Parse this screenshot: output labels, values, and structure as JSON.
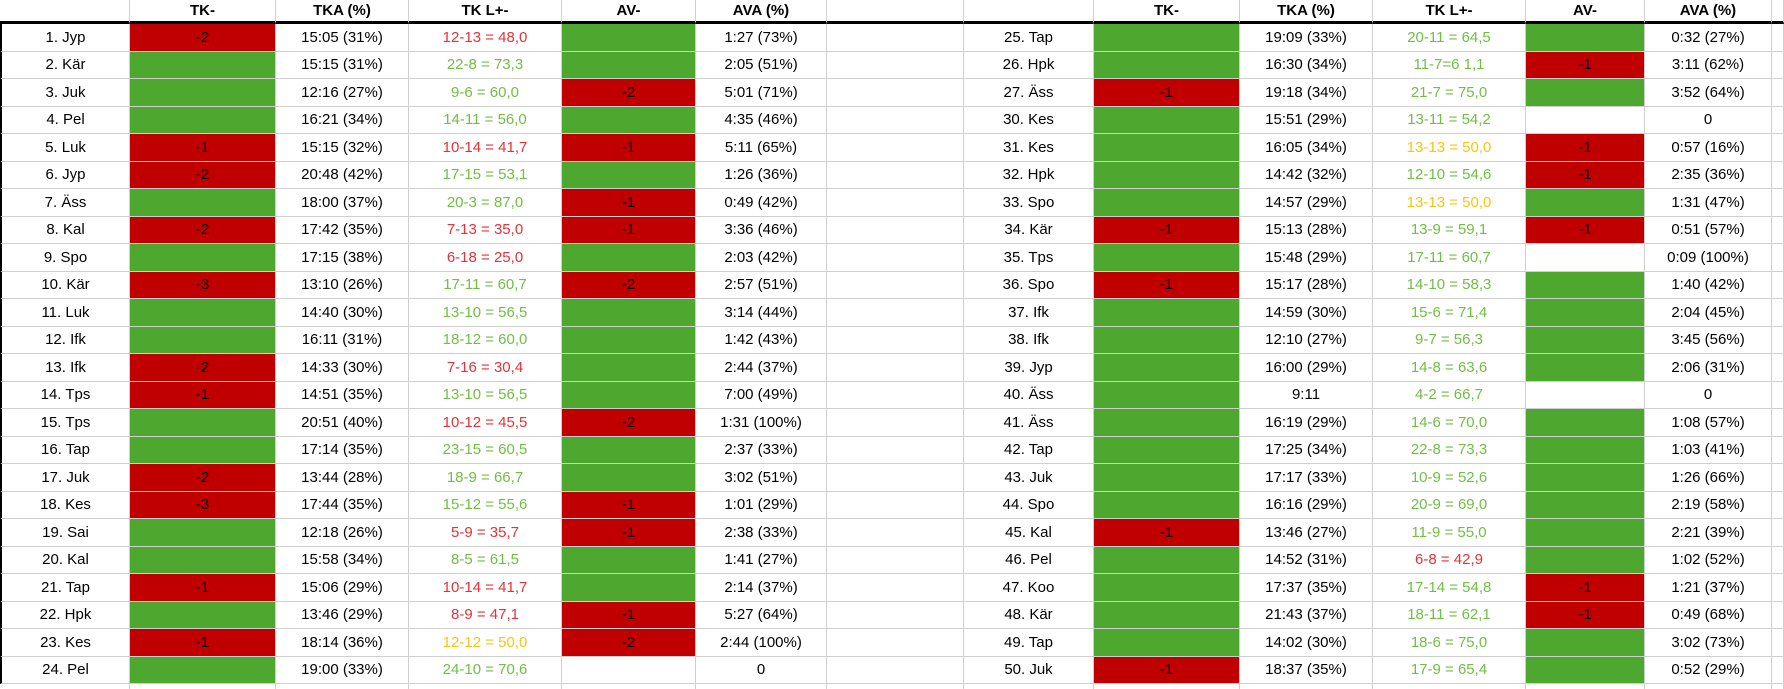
{
  "columns": [
    "",
    "TK-",
    "TKA (%)",
    "TK L+-",
    "AV-",
    "AVA (%)"
  ],
  "colors": {
    "fill_green": "#4ea72e",
    "fill_red": "#c00000",
    "text_green": "#70bf44",
    "text_red": "#e53238",
    "text_yellow": "#fcc40f",
    "text_black": "#000000",
    "gridline": "#cfcfcf",
    "header_rule": "#000000"
  },
  "left_rows": [
    {
      "label": "1. Jyp",
      "tk": {
        "fill": "red",
        "text": "-2"
      },
      "tka": "15:05 (31%)",
      "tkl": "12-13 = 48,0",
      "tklc": "red",
      "av": {
        "fill": "green"
      },
      "ava": "1:27 (73%)"
    },
    {
      "label": "2. Kär",
      "tk": {
        "fill": "green"
      },
      "tka": "15:15 (31%)",
      "tkl": "22-8 = 73,3",
      "tklc": "green",
      "av": {
        "fill": "green"
      },
      "ava": "2:05 (51%)"
    },
    {
      "label": "3. Juk",
      "tk": {
        "fill": "green"
      },
      "tka": "12:16 (27%)",
      "tkl": "9-6 = 60,0",
      "tklc": "green",
      "av": {
        "fill": "red",
        "text": "-2"
      },
      "ava": "5:01 (71%)"
    },
    {
      "label": "4. Pel",
      "tk": {
        "fill": "green"
      },
      "tka": "16:21 (34%)",
      "tkl": "14-11 = 56,0",
      "tklc": "green",
      "av": {
        "fill": "green"
      },
      "ava": "4:35 (46%)"
    },
    {
      "label": "5. Luk",
      "tk": {
        "fill": "red",
        "text": "-1"
      },
      "tka": "15:15 (32%)",
      "tkl": "10-14 = 41,7",
      "tklc": "red",
      "av": {
        "fill": "red",
        "text": "-1"
      },
      "ava": "5:11 (65%)"
    },
    {
      "label": "6. Jyp",
      "tk": {
        "fill": "red",
        "text": "-2"
      },
      "tka": "20:48 (42%)",
      "tkl": "17-15 = 53,1",
      "tklc": "green",
      "av": {
        "fill": "green"
      },
      "ava": "1:26 (36%)"
    },
    {
      "label": "7. Äss",
      "tk": {
        "fill": "green"
      },
      "tka": "18:00 (37%)",
      "tkl": "20-3 = 87,0",
      "tklc": "green",
      "av": {
        "fill": "red",
        "text": "-1"
      },
      "ava": "0:49 (42%)"
    },
    {
      "label": "8. Kal",
      "tk": {
        "fill": "red",
        "text": "-2"
      },
      "tka": "17:42 (35%)",
      "tkl": "7-13 = 35,0",
      "tklc": "red",
      "av": {
        "fill": "red",
        "text": "-1"
      },
      "ava": "3:36 (46%)"
    },
    {
      "label": "9. Spo",
      "tk": {
        "fill": "green"
      },
      "tka": "17:15 (38%)",
      "tkl": "6-18 = 25,0",
      "tklc": "red",
      "av": {
        "fill": "green"
      },
      "ava": "2:03 (42%)"
    },
    {
      "label": "10. Kär",
      "tk": {
        "fill": "red",
        "text": "-3"
      },
      "tka": "13:10 (26%)",
      "tkl": "17-11 = 60,7",
      "tklc": "green",
      "av": {
        "fill": "red",
        "text": "-2"
      },
      "ava": "2:57 (51%)"
    },
    {
      "label": "11. Luk",
      "tk": {
        "fill": "green"
      },
      "tka": "14:40 (30%)",
      "tkl": "13-10 = 56,5",
      "tklc": "green",
      "av": {
        "fill": "green"
      },
      "ava": "3:14 (44%)"
    },
    {
      "label": "12. Ifk",
      "tk": {
        "fill": "green"
      },
      "tka": "16:11 (31%)",
      "tkl": "18-12 = 60,0",
      "tklc": "green",
      "av": {
        "fill": "green"
      },
      "ava": "1:42 (43%)"
    },
    {
      "label": "13. Ifk",
      "tk": {
        "fill": "red",
        "text": "-2"
      },
      "tka": "14:33 (30%)",
      "tkl": "7-16 = 30,4",
      "tklc": "red",
      "av": {
        "fill": "green"
      },
      "ava": "2:44 (37%)"
    },
    {
      "label": "14. Tps",
      "tk": {
        "fill": "red",
        "text": "-1"
      },
      "tka": "14:51 (35%)",
      "tkl": "13-10 = 56,5",
      "tklc": "green",
      "av": {
        "fill": "green"
      },
      "ava": "7:00 (49%)"
    },
    {
      "label": "15. Tps",
      "tk": {
        "fill": "green"
      },
      "tka": "20:51 (40%)",
      "tkl": "10-12 = 45,5",
      "tklc": "red",
      "av": {
        "fill": "red",
        "text": "-2"
      },
      "ava": "1:31 (100%)"
    },
    {
      "label": "16. Tap",
      "tk": {
        "fill": "green"
      },
      "tka": "17:14 (35%)",
      "tkl": "23-15 = 60,5",
      "tklc": "green",
      "av": {
        "fill": "green"
      },
      "ava": "2:37 (33%)"
    },
    {
      "label": "17. Juk",
      "tk": {
        "fill": "red",
        "text": "-2"
      },
      "tka": "13:44 (28%)",
      "tkl": "18-9 = 66,7",
      "tklc": "green",
      "av": {
        "fill": "green"
      },
      "ava": "3:02 (51%)"
    },
    {
      "label": "18. Kes",
      "tk": {
        "fill": "red",
        "text": "-3"
      },
      "tka": "17:44 (35%)",
      "tkl": "15-12 = 55,6",
      "tklc": "green",
      "av": {
        "fill": "red",
        "text": "-1"
      },
      "ava": "1:01 (29%)"
    },
    {
      "label": "19. Sai",
      "tk": {
        "fill": "green"
      },
      "tka": "12:18 (26%)",
      "tkl": "5-9 = 35,7",
      "tklc": "red",
      "av": {
        "fill": "red",
        "text": "-1"
      },
      "ava": "2:38 (33%)"
    },
    {
      "label": "20. Kal",
      "tk": {
        "fill": "green"
      },
      "tka": "15:58 (34%)",
      "tkl": "8-5 = 61,5",
      "tklc": "green",
      "av": {
        "fill": "green"
      },
      "ava": "1:41 (27%)"
    },
    {
      "label": "21. Tap",
      "tk": {
        "fill": "red",
        "text": "-1"
      },
      "tka": "15:06 (29%)",
      "tkl": "10-14 = 41,7",
      "tklc": "red",
      "av": {
        "fill": "green"
      },
      "ava": "2:14 (37%)"
    },
    {
      "label": "22. Hpk",
      "tk": {
        "fill": "green"
      },
      "tka": "13:46 (29%)",
      "tkl": "8-9 = 47,1",
      "tklc": "red",
      "av": {
        "fill": "red",
        "text": "-1"
      },
      "ava": "5:27 (64%)"
    },
    {
      "label": "23. Kes",
      "tk": {
        "fill": "red",
        "text": "-1"
      },
      "tka": "18:14 (36%)",
      "tkl": "12-12 = 50,0",
      "tklc": "yellow",
      "av": {
        "fill": "red",
        "text": "-2"
      },
      "ava": "2:44 (100%)"
    },
    {
      "label": "24. Pel",
      "tk": {
        "fill": "green"
      },
      "tka": "19:00 (33%)",
      "tkl": "24-10 = 70,6",
      "tklc": "green",
      "av": {
        "fill": "none"
      },
      "ava": "0"
    }
  ],
  "right_rows": [
    {
      "label": "25. Tap",
      "tk": {
        "fill": "green"
      },
      "tka": "19:09 (33%)",
      "tkl": "20-11 = 64,5",
      "tklc": "green",
      "av": {
        "fill": "green"
      },
      "ava": "0:32 (27%)"
    },
    {
      "label": "26. Hpk",
      "tk": {
        "fill": "green"
      },
      "tka": "16:30 (34%)",
      "tkl": "11-7=6 1,1",
      "tklc": "green",
      "av": {
        "fill": "red",
        "text": "-1"
      },
      "ava": "3:11 (62%)"
    },
    {
      "label": "27. Äss",
      "tk": {
        "fill": "red",
        "text": "-1"
      },
      "tka": "19:18 (34%)",
      "tkl": "21-7 = 75,0",
      "tklc": "green",
      "av": {
        "fill": "green"
      },
      "ava": "3:52 (64%)"
    },
    {
      "label": "30. Kes",
      "tk": {
        "fill": "green"
      },
      "tka": "15:51 (29%)",
      "tkl": "13-11 = 54,2",
      "tklc": "green",
      "av": {
        "fill": "none"
      },
      "ava": "0"
    },
    {
      "label": "31. Kes",
      "tk": {
        "fill": "green"
      },
      "tka": "16:05 (34%)",
      "tkl": "13-13 = 50,0",
      "tklc": "yellow",
      "av": {
        "fill": "red",
        "text": "-1"
      },
      "ava": "0:57 (16%)"
    },
    {
      "label": "32. Hpk",
      "tk": {
        "fill": "green"
      },
      "tka": "14:42 (32%)",
      "tkl": "12-10 = 54,6",
      "tklc": "green",
      "av": {
        "fill": "red",
        "text": "-1"
      },
      "ava": "2:35 (36%)"
    },
    {
      "label": "33. Spo",
      "tk": {
        "fill": "green"
      },
      "tka": "14:57 (29%)",
      "tkl": "13-13 = 50,0",
      "tklc": "yellow",
      "av": {
        "fill": "green"
      },
      "ava": "1:31 (47%)"
    },
    {
      "label": "34. Kär",
      "tk": {
        "fill": "red",
        "text": "-1"
      },
      "tka": "15:13 (28%)",
      "tkl": "13-9 = 59,1",
      "tklc": "green",
      "av": {
        "fill": "red",
        "text": "-1"
      },
      "ava": "0:51 (57%)"
    },
    {
      "label": "35. Tps",
      "tk": {
        "fill": "green"
      },
      "tka": "15:48 (29%)",
      "tkl": "17-11 = 60,7",
      "tklc": "green",
      "av": {
        "fill": "none"
      },
      "ava": "0:09 (100%)"
    },
    {
      "label": "36. Spo",
      "tk": {
        "fill": "red",
        "text": "-1"
      },
      "tka": "15:17 (28%)",
      "tkl": "14-10 = 58,3",
      "tklc": "green",
      "av": {
        "fill": "green"
      },
      "ava": "1:40 (42%)"
    },
    {
      "label": "37. Ifk",
      "tk": {
        "fill": "green"
      },
      "tka": "14:59 (30%)",
      "tkl": "15-6 = 71,4",
      "tklc": "green",
      "av": {
        "fill": "green"
      },
      "ava": "2:04 (45%)"
    },
    {
      "label": "38. Ifk",
      "tk": {
        "fill": "green"
      },
      "tka": "12:10 (27%)",
      "tkl": "9-7 = 56,3",
      "tklc": "green",
      "av": {
        "fill": "green"
      },
      "ava": "3:45 (56%)"
    },
    {
      "label": "39. Jyp",
      "tk": {
        "fill": "green"
      },
      "tka": "16:00 (29%)",
      "tkl": "14-8 = 63,6",
      "tklc": "green",
      "av": {
        "fill": "green"
      },
      "ava": "2:06 (31%)"
    },
    {
      "label": "40. Äss",
      "tk": {
        "fill": "green"
      },
      "tka": "9:11",
      "tkl": "4-2 = 66,7",
      "tklc": "green",
      "av": {
        "fill": "none"
      },
      "ava": "0"
    },
    {
      "label": "41. Äss",
      "tk": {
        "fill": "green"
      },
      "tka": "16:19 (29%)",
      "tkl": "14-6 = 70,0",
      "tklc": "green",
      "av": {
        "fill": "green"
      },
      "ava": "1:08 (57%)"
    },
    {
      "label": "42. Tap",
      "tk": {
        "fill": "green"
      },
      "tka": "17:25 (34%)",
      "tkl": "22-8 = 73,3",
      "tklc": "green",
      "av": {
        "fill": "green"
      },
      "ava": "1:03 (41%)"
    },
    {
      "label": "43. Juk",
      "tk": {
        "fill": "green"
      },
      "tka": "17:17 (33%)",
      "tkl": "10-9 = 52,6",
      "tklc": "green",
      "av": {
        "fill": "green"
      },
      "ava": "1:26 (66%)"
    },
    {
      "label": "44. Spo",
      "tk": {
        "fill": "green"
      },
      "tka": "16:16 (29%)",
      "tkl": "20-9 = 69,0",
      "tklc": "green",
      "av": {
        "fill": "green"
      },
      "ava": "2:19 (58%)"
    },
    {
      "label": "45. Kal",
      "tk": {
        "fill": "red",
        "text": "-1"
      },
      "tka": "13:46 (27%)",
      "tkl": "11-9 = 55,0",
      "tklc": "green",
      "av": {
        "fill": "green"
      },
      "ava": "2:21 (39%)"
    },
    {
      "label": "46. Pel",
      "tk": {
        "fill": "green"
      },
      "tka": "14:52 (31%)",
      "tkl": "6-8 = 42,9",
      "tklc": "red",
      "av": {
        "fill": "green"
      },
      "ava": "1:02 (52%)"
    },
    {
      "label": "47. Koo",
      "tk": {
        "fill": "green"
      },
      "tka": "17:37 (35%)",
      "tkl": "17-14 = 54,8",
      "tklc": "green",
      "av": {
        "fill": "red",
        "text": "-1"
      },
      "ava": "1:21 (37%)"
    },
    {
      "label": "48. Kär",
      "tk": {
        "fill": "green"
      },
      "tka": "21:43 (37%)",
      "tkl": "18-11 = 62,1",
      "tklc": "green",
      "av": {
        "fill": "red",
        "text": "-1"
      },
      "ava": "0:49 (68%)"
    },
    {
      "label": "49. Tap",
      "tk": {
        "fill": "green"
      },
      "tka": "14:02 (30%)",
      "tkl": "18-6 = 75,0",
      "tklc": "green",
      "av": {
        "fill": "green"
      },
      "ava": "3:02 (73%)"
    },
    {
      "label": "50. Juk",
      "tk": {
        "fill": "red",
        "text": "-1"
      },
      "tka": "18:37 (35%)",
      "tkl": "17-9 = 65,4",
      "tklc": "green",
      "av": {
        "fill": "green"
      },
      "ava": "0:52 (29%)"
    }
  ]
}
